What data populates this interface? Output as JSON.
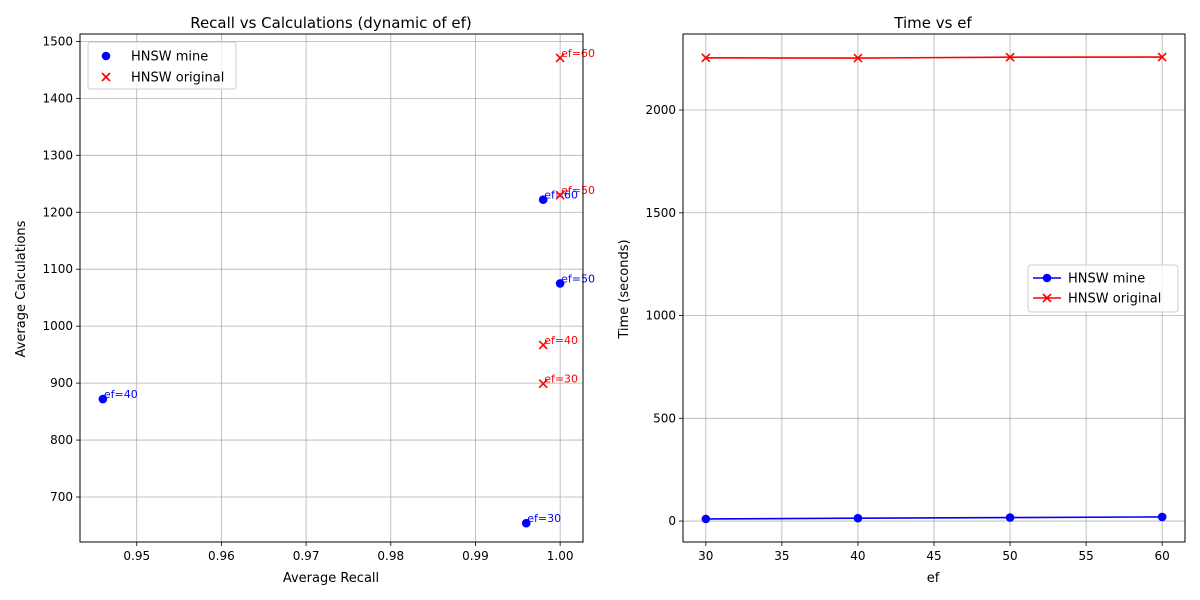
{
  "chart_data": [
    {
      "type": "scatter",
      "title": "Recall vs Calculations (dynamic of ef)",
      "xlabel": "Average Recall",
      "ylabel": "Average Calculations",
      "xlim": [
        0.9433,
        1.0027
      ],
      "ylim": [
        621,
        1513
      ],
      "xticks": [
        0.95,
        0.96,
        0.97,
        0.98,
        0.99,
        1.0
      ],
      "xtick_labels": [
        "0.95",
        "0.96",
        "0.97",
        "0.98",
        "0.99",
        "1.00"
      ],
      "yticks": [
        700,
        800,
        900,
        1000,
        1100,
        1200,
        1300,
        1400,
        1500
      ],
      "ytick_labels": [
        "700",
        "800",
        "900",
        "1000",
        "1100",
        "1200",
        "1300",
        "1400",
        "1500"
      ],
      "grid": true,
      "legend_position": "top-left",
      "series": [
        {
          "name": "HNSW mine",
          "color": "#0000ff",
          "marker": "circle",
          "points": [
            {
              "x": 0.996,
              "y": 654,
              "label": "ef=30"
            },
            {
              "x": 0.946,
              "y": 872,
              "label": "ef=40"
            },
            {
              "x": 1.0,
              "y": 1075,
              "label": "ef=50"
            },
            {
              "x": 0.998,
              "y": 1222,
              "label": "ef=60"
            }
          ]
        },
        {
          "name": "HNSW original",
          "color": "#ff0000",
          "marker": "x",
          "points": [
            {
              "x": 0.998,
              "y": 899,
              "label": "ef=30"
            },
            {
              "x": 0.998,
              "y": 967,
              "label": "ef=40"
            },
            {
              "x": 1.0,
              "y": 1230,
              "label": "ef=50"
            },
            {
              "x": 1.0,
              "y": 1471,
              "label": "ef=60"
            }
          ]
        }
      ]
    },
    {
      "type": "line",
      "title": "Time vs ef",
      "xlabel": "ef",
      "ylabel": "Time (seconds)",
      "x": [
        30,
        40,
        50,
        60
      ],
      "xlim": [
        28.5,
        61.5
      ],
      "ylim": [
        -102,
        2370
      ],
      "xticks": [
        30,
        35,
        40,
        45,
        50,
        55,
        60
      ],
      "xtick_labels": [
        "30",
        "35",
        "40",
        "45",
        "50",
        "55",
        "60"
      ],
      "yticks": [
        0,
        500,
        1000,
        1500,
        2000
      ],
      "ytick_labels": [
        "0",
        "500",
        "1000",
        "1500",
        "2000"
      ],
      "grid": true,
      "legend_position": "center-right",
      "series": [
        {
          "name": "HNSW mine",
          "color": "#0000ff",
          "marker": "circle",
          "values": [
            10,
            14,
            17,
            20
          ]
        },
        {
          "name": "HNSW original",
          "color": "#ff0000",
          "marker": "x",
          "values": [
            2254,
            2253,
            2257,
            2258
          ]
        }
      ]
    }
  ]
}
